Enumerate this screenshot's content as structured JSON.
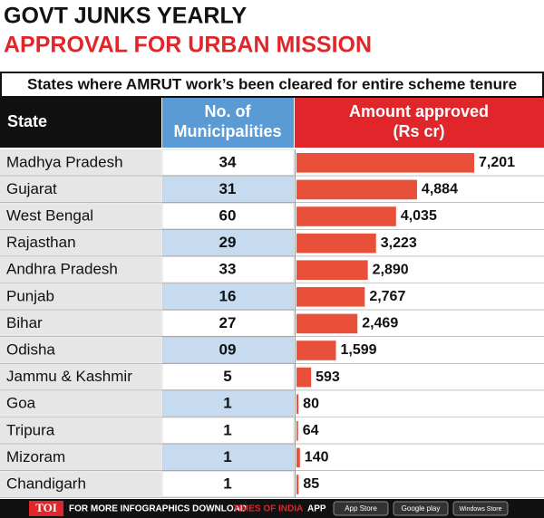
{
  "header": {
    "title_line1": "GOVT JUNKS YEARLY",
    "title_line2": "APPROVAL FOR URBAN MISSION"
  },
  "table": {
    "caption": "States where AMRUT work’s been cleared for entire scheme tenure",
    "columns": [
      [
        "State"
      ],
      [
        "No. of",
        "Municipalities"
      ],
      [
        "Amount approved",
        "(Rs cr)"
      ]
    ],
    "states": [
      "Madhya Pradesh",
      "Gujarat",
      "West Bengal",
      "Rajasthan",
      "Andhra Pradesh",
      "Punjab",
      "Bihar",
      "Odisha",
      "Jammu & Kashmir",
      "Goa",
      "Tripura",
      "Mizoram",
      "Chandigarh"
    ],
    "municipalities": [
      "34",
      "31",
      "60",
      "29",
      "33",
      "16",
      "27",
      "09",
      "5",
      "1",
      "1",
      "1",
      "1"
    ],
    "amounts": [
      7201,
      4884,
      4035,
      3223,
      2890,
      2767,
      2469,
      1599,
      593,
      80,
      64,
      140,
      85
    ],
    "amount_labels": [
      "7,201",
      "4,884",
      "4,035",
      "3,223",
      "2,890",
      "2,767",
      "2,469",
      "1,599",
      "593",
      "80",
      "64",
      "140",
      "85"
    ]
  },
  "footer": {
    "logo": "TOI",
    "text": "FOR MORE INFOGRAPHICS DOWNLOAD",
    "brand": "TIMES OF INDIA",
    "app": "APP",
    "store1": "App Store",
    "store2": "Google play",
    "store3": "Windows Store"
  }
}
